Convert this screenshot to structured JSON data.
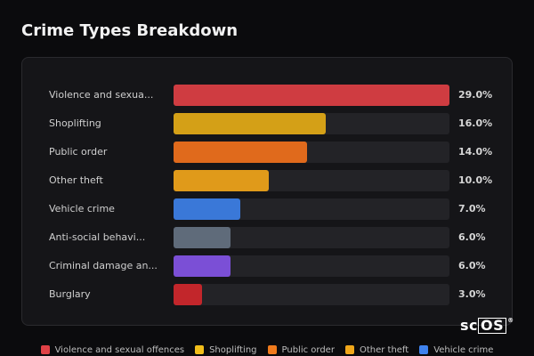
{
  "chart_data": {
    "type": "bar",
    "orientation": "horizontal",
    "title": "Crime Types Breakdown",
    "categories": [
      "Violence and sexua...",
      "Shoplifting",
      "Public order",
      "Other theft",
      "Vehicle crime",
      "Anti-social behavi...",
      "Criminal damage an...",
      "Burglary"
    ],
    "values": [
      29.0,
      16.0,
      14.0,
      10.0,
      7.0,
      6.0,
      6.0,
      3.0
    ],
    "value_labels": [
      "29.0%",
      "16.0%",
      "14.0%",
      "10.0%",
      "7.0%",
      "6.0%",
      "6.0%",
      "3.0%"
    ],
    "unit": "%",
    "xlim": [
      0,
      29.0
    ],
    "colors": [
      "#cf3c41",
      "#d4a017",
      "#e06a1c",
      "#e09a1a",
      "#3a78d8",
      "#5f6b7a",
      "#7b4fd6",
      "#c2262b"
    ],
    "legend": {
      "placement": "bottom",
      "entries": [
        {
          "label": "Violence and sexual offences",
          "color": "#e04146"
        },
        {
          "label": "Shoplifting",
          "color": "#f2be1a"
        },
        {
          "label": "Public order",
          "color": "#f07a1c"
        },
        {
          "label": "Other theft",
          "color": "#f0a71a"
        },
        {
          "label": "Vehicle crime",
          "color": "#3f82ee"
        }
      ]
    }
  },
  "brand": {
    "prefix": "sc",
    "boxed": "OS",
    "mark": "®"
  }
}
